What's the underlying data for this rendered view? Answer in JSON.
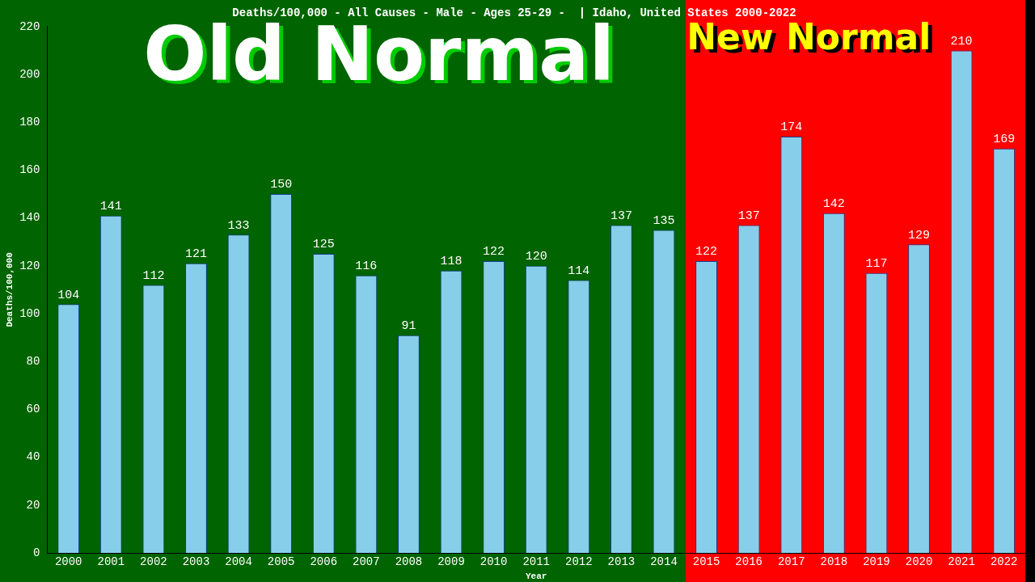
{
  "chart_data": {
    "type": "bar",
    "title": "Deaths/100,000 - All Causes - Male - Ages 25-29 -  | Idaho, United States 2000-2022",
    "xlabel": "Year",
    "ylabel": "Deaths/100,000",
    "categories": [
      "2000",
      "2001",
      "2002",
      "2003",
      "2004",
      "2005",
      "2006",
      "2007",
      "2008",
      "2009",
      "2010",
      "2011",
      "2012",
      "2013",
      "2014",
      "2015",
      "2016",
      "2017",
      "2018",
      "2019",
      "2020",
      "2021",
      "2022"
    ],
    "values": [
      104,
      141,
      112,
      121,
      133,
      150,
      125,
      116,
      91,
      118,
      122,
      120,
      114,
      137,
      135,
      122,
      137,
      174,
      142,
      117,
      129,
      210,
      169
    ],
    "color": "#87ceeb",
    "ylim": [
      0,
      220
    ],
    "yticks": [
      0,
      20,
      40,
      60,
      80,
      100,
      120,
      140,
      160,
      180,
      200,
      220
    ],
    "grid": false,
    "legend": false,
    "data_labels": true,
    "bands": [
      {
        "axis": "x",
        "from": "2000",
        "to": "2014",
        "label": "Old Normal",
        "color": "#006400"
      },
      {
        "axis": "x",
        "from": "2015",
        "to": "2022",
        "label": "New Normal",
        "color": "#ff0000"
      }
    ]
  }
}
